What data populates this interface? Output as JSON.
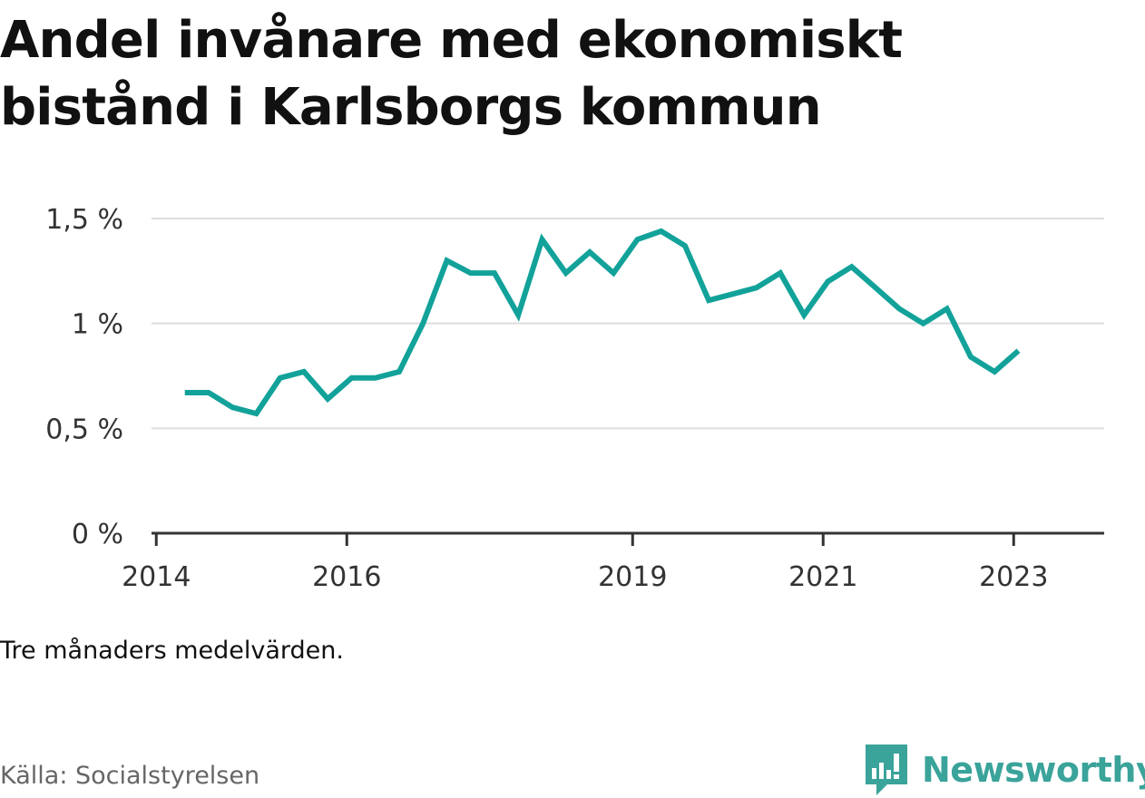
{
  "title": "Andel invånare med ekonomiskt bistånd i Karlsborgs kommun",
  "note": "Tre månaders medelvärden.",
  "source": "Källa: Socialstyrelsen",
  "brand": {
    "name": "Newsworthy",
    "color": "#3aa39a",
    "icon": "newsworthy-logo-icon"
  },
  "chart_data": {
    "type": "line",
    "title": "Andel invånare med ekonomiskt bistånd i Karlsborgs kommun",
    "xlabel": "",
    "ylabel": "",
    "ylim": [
      0,
      1.5
    ],
    "y_ticks": [
      {
        "value": 0,
        "label": "0 %"
      },
      {
        "value": 0.5,
        "label": "0,5 %"
      },
      {
        "value": 1.0,
        "label": "1 %"
      },
      {
        "value": 1.5,
        "label": "1,5 %"
      }
    ],
    "x_ticks": [
      {
        "value": 2014,
        "label": "2014"
      },
      {
        "value": 2016,
        "label": "2016"
      },
      {
        "value": 2019,
        "label": "2019"
      },
      {
        "value": 2021,
        "label": "2021"
      },
      {
        "value": 2023,
        "label": "2023"
      }
    ],
    "grid": true,
    "line_color": "#12a29a",
    "series": [
      {
        "x": [
          2014.3,
          2014.55,
          2014.8,
          2015.05,
          2015.3,
          2015.55,
          2015.8,
          2016.05,
          2016.3,
          2016.55,
          2016.8,
          2017.05,
          2017.3,
          2017.55,
          2017.8,
          2018.05,
          2018.3,
          2018.55,
          2018.8,
          2019.05,
          2019.3,
          2019.55,
          2019.8,
          2020.05,
          2020.3,
          2020.55,
          2020.8,
          2021.05,
          2021.3,
          2021.55,
          2021.8,
          2022.05,
          2022.3,
          2022.55,
          2022.8,
          2023.05,
          2023.3
        ],
        "values": [
          0.67,
          0.67,
          0.6,
          0.57,
          0.74,
          0.77,
          0.64,
          0.74,
          0.74,
          0.77,
          1.0,
          1.3,
          1.24,
          1.24,
          1.04,
          1.4,
          1.24,
          1.34,
          1.24,
          1.4,
          1.44,
          1.37,
          1.11,
          1.14,
          1.17,
          1.24,
          1.04,
          1.2,
          1.27,
          1.17,
          1.07,
          1.0,
          1.07,
          0.84,
          0.77,
          0.87,
          null
        ]
      }
    ]
  }
}
